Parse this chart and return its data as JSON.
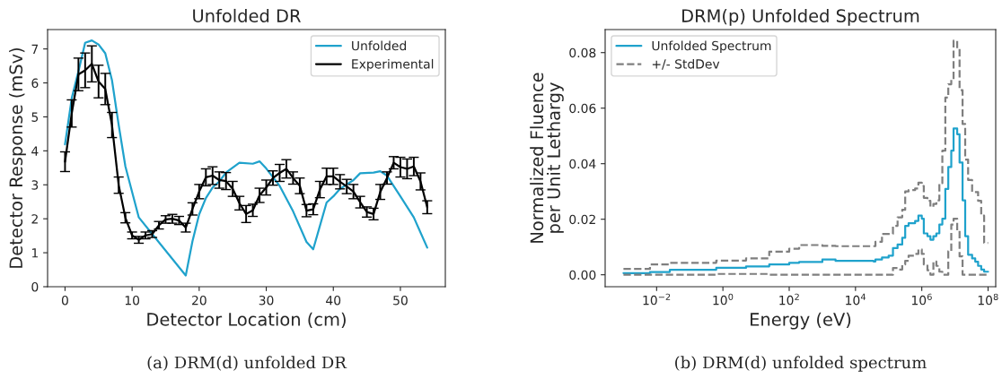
{
  "chart_data": [
    {
      "type": "line",
      "title": "Unfolded DR",
      "xlabel": "Detector Location (cm)",
      "ylabel": "Detector Response (mSv)",
      "xlim": [
        -2.6,
        56.7
      ],
      "ylim": [
        0,
        7.57
      ],
      "xticks": [
        0,
        10,
        20,
        30,
        40,
        50
      ],
      "yticks": [
        0,
        1,
        2,
        3,
        4,
        5,
        6,
        7
      ],
      "grid": false,
      "legend": "top right",
      "series": [
        {
          "name": "Unfolded",
          "color": "#1fa2cc",
          "x": [
            0,
            1,
            2,
            3,
            4,
            5,
            6,
            7,
            8,
            9,
            10,
            11,
            18,
            19,
            20,
            21,
            22,
            23,
            24,
            26,
            28,
            29,
            30,
            32,
            34,
            36,
            37,
            39,
            40,
            41,
            43,
            44,
            46,
            47,
            48,
            50,
            52,
            54
          ],
          "values": [
            4.19,
            5.55,
            6.34,
            7.18,
            7.25,
            7.13,
            6.87,
            6.08,
            4.76,
            3.54,
            2.79,
            2.04,
            0.33,
            1.34,
            2.13,
            2.61,
            2.92,
            3.1,
            3.36,
            3.65,
            3.62,
            3.69,
            3.48,
            2.97,
            2.22,
            1.32,
            1.1,
            2.48,
            2.66,
            2.88,
            3.14,
            3.34,
            3.36,
            3.4,
            3.27,
            2.66,
            2.04,
            1.15
          ]
        },
        {
          "name": "Experimental",
          "color": "#000000",
          "x": [
            0,
            1,
            2,
            3,
            4,
            5,
            6,
            7,
            8,
            9,
            10,
            11,
            12,
            13,
            14,
            15,
            16,
            17,
            18,
            19,
            20,
            21,
            22,
            23,
            24,
            25,
            26,
            27,
            28,
            29,
            30,
            31,
            32,
            33,
            34,
            35,
            36,
            37,
            38,
            39,
            40,
            41,
            42,
            43,
            44,
            45,
            46,
            47,
            48,
            49,
            50,
            51,
            52,
            53,
            54
          ],
          "values": [
            3.68,
            5.1,
            6.25,
            6.37,
            6.56,
            6.04,
            5.82,
            4.76,
            2.99,
            2.03,
            1.51,
            1.38,
            1.51,
            1.55,
            1.81,
            1.98,
            2.0,
            1.95,
            1.74,
            2.29,
            2.8,
            3.22,
            3.27,
            3.14,
            3.11,
            2.88,
            2.46,
            2.14,
            2.25,
            2.69,
            2.92,
            3.2,
            3.35,
            3.47,
            3.2,
            2.97,
            2.24,
            2.28,
            2.86,
            3.25,
            3.25,
            3.09,
            2.95,
            2.8,
            2.49,
            2.2,
            2.14,
            2.79,
            3.2,
            3.65,
            3.52,
            3.47,
            3.54,
            3.1,
            2.34
          ],
          "errors": [
            0.29,
            0.4,
            0.48,
            0.51,
            0.53,
            0.48,
            0.46,
            0.37,
            0.24,
            0.15,
            0.1,
            0.1,
            0.1,
            0.1,
            0.11,
            0.11,
            0.13,
            0.12,
            0.13,
            0.18,
            0.21,
            0.25,
            0.26,
            0.24,
            0.25,
            0.22,
            0.2,
            0.25,
            0.18,
            0.21,
            0.22,
            0.21,
            0.25,
            0.27,
            0.18,
            0.23,
            0.18,
            0.16,
            0.24,
            0.24,
            0.24,
            0.21,
            0.21,
            0.21,
            0.17,
            0.15,
            0.17,
            0.22,
            0.18,
            0.18,
            0.29,
            0.29,
            0.27,
            0.25,
            0.19
          ]
        }
      ],
      "annotations": [
        "(a) DRM(d) unfolded DR"
      ]
    },
    {
      "type": "step",
      "title": "DRM(p) Unfolded Spectrum",
      "xlabel": "Energy (eV)",
      "ylabel": "Normalized Fluence\nper Unit Lethargy",
      "log": "x",
      "xlim": [
        0.00028,
        170000000
      ],
      "ylim": [
        -0.0043,
        0.0883
      ],
      "xticks": [
        {
          "value": 0.01,
          "label": "10$^{−2}$"
        },
        {
          "value": 1,
          "label": "10$^{0}$"
        },
        {
          "value": 100,
          "label": "10$^{2}$"
        },
        {
          "value": 10000,
          "label": "10$^{4}$"
        },
        {
          "value": 1000000,
          "label": "10$^{6}$"
        },
        {
          "value": 100000000,
          "label": "10$^{8}$"
        }
      ],
      "yticks": [
        {
          "value": 0,
          "label": "0.00"
        },
        0.02,
        0.04,
        0.06,
        0.08
      ],
      "grid": false,
      "legend": "top left",
      "x": [
        0.001,
        0.0063,
        0.025,
        0.63,
        5,
        25,
        100,
        200,
        1000,
        2500,
        35000,
        40000,
        63000,
        100000,
        135000,
        186000,
        257000,
        316000,
        400000,
        630000,
        790000,
        1000000,
        1150000,
        1480000,
        1820000,
        2240000,
        2750000,
        3390000,
        4170000,
        5130000,
        6300000,
        7760000,
        9100000,
        11700000,
        13800000,
        17000000,
        20400000,
        25000000,
        33000000,
        41000000,
        50000000,
        62000000,
        76000000,
        100000000
      ],
      "series": [
        {
          "name": "Unfolded Spectrum",
          "color": "#1fa2cc",
          "line_style": "solid",
          "values": [
            0.0006,
            0.001,
            0.0018,
            0.0025,
            0.003,
            0.0037,
            0.0043,
            0.0046,
            0.0055,
            0.005,
            0.0048,
            0.0055,
            0.0062,
            0.0069,
            0.0096,
            0.0109,
            0.0133,
            0.0176,
            0.0186,
            0.0194,
            0.0213,
            0.0202,
            0.0149,
            0.0139,
            0.0126,
            0.0139,
            0.0149,
            0.0181,
            0.0202,
            0.0309,
            0.0388,
            0.0447,
            0.0527,
            0.0506,
            0.0404,
            0.0268,
            0.0139,
            0.0072,
            0.0059,
            0.0047,
            0.0032,
            0.0019,
            0.0011,
            0.0011
          ]
        },
        {
          "name": "+/- StdDev",
          "color": "#7f7f7f",
          "line_style": "dashed",
          "values": [
            0.0021,
            0.0037,
            0.0043,
            0.0051,
            0.0059,
            0.0083,
            0.0094,
            0.0107,
            0.0104,
            0.0103,
            0.0103,
            0.0119,
            0.0147,
            0.0147,
            0.0176,
            0.0207,
            0.0234,
            0.03,
            0.0305,
            0.0311,
            0.0332,
            0.032,
            0.0277,
            0.0266,
            0.0245,
            0.0255,
            0.0268,
            0.033,
            0.0447,
            0.0638,
            0.0686,
            0.0703,
            0.0843,
            0.0814,
            0.0665,
            0.0543,
            0.0415,
            0.0341,
            0.0298,
            0.0298,
            0.0266,
            0.0213,
            0.0115,
            0.0115
          ]
        },
        {
          "color": "#7f7f7f",
          "line_style": "dashed",
          "values": [
            0,
            0,
            0,
            0.0003,
            0.0003,
            0,
            0,
            0,
            0,
            0,
            0,
            0,
            0,
            0,
            0.0024,
            0.0019,
            0.0037,
            0.005,
            0.0069,
            0.0075,
            0.0091,
            0.0075,
            0.0037,
            0.0016,
            0,
            0.0048,
            0.0032,
            0.0011,
            0,
            0,
            0.0085,
            0.0181,
            0.0202,
            0.016,
            0.0066,
            0,
            0,
            0,
            0,
            0,
            0,
            0,
            0,
            0
          ]
        }
      ],
      "annotations": [
        "(b) DRM(d) unfolded spectrum"
      ]
    }
  ]
}
